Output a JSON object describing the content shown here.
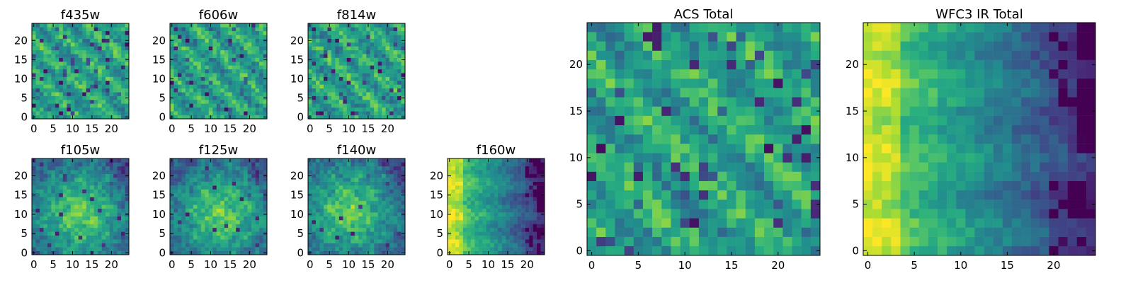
{
  "chart_data": [
    {
      "type": "heatmap",
      "title": "f435w",
      "xlabel": "",
      "ylabel": "",
      "xticks": [
        0,
        5,
        10,
        15,
        20
      ],
      "yticks": [
        0,
        5,
        10,
        15,
        20
      ],
      "xlim": [
        -0.5,
        24.5
      ],
      "ylim": [
        -0.5,
        24.5
      ],
      "grid": false,
      "colormap": "viridis",
      "rows": 25,
      "cols": 25,
      "pattern": "noise",
      "seed": 11
    },
    {
      "type": "heatmap",
      "title": "f606w",
      "xlabel": "",
      "ylabel": "",
      "xticks": [
        0,
        5,
        10,
        15,
        20
      ],
      "yticks": [
        0,
        5,
        10,
        15,
        20
      ],
      "xlim": [
        -0.5,
        24.5
      ],
      "ylim": [
        -0.5,
        24.5
      ],
      "grid": false,
      "colormap": "viridis",
      "rows": 25,
      "cols": 25,
      "pattern": "noise",
      "seed": 23
    },
    {
      "type": "heatmap",
      "title": "f814w",
      "xlabel": "",
      "ylabel": "",
      "xticks": [
        0,
        5,
        10,
        15,
        20
      ],
      "yticks": [
        0,
        5,
        10,
        15,
        20
      ],
      "xlim": [
        -0.5,
        24.5
      ],
      "ylim": [
        -0.5,
        24.5
      ],
      "grid": false,
      "colormap": "viridis",
      "rows": 25,
      "cols": 25,
      "pattern": "noise",
      "seed": 37
    },
    {
      "type": "heatmap",
      "title": "f105w",
      "xlabel": "",
      "ylabel": "",
      "xticks": [
        0,
        5,
        10,
        15,
        20
      ],
      "yticks": [
        0,
        5,
        10,
        15,
        20
      ],
      "xlim": [
        -0.5,
        24.5
      ],
      "ylim": [
        -0.5,
        24.5
      ],
      "grid": false,
      "colormap": "viridis",
      "rows": 25,
      "cols": 25,
      "pattern": "smooth",
      "seed": 41
    },
    {
      "type": "heatmap",
      "title": "f125w",
      "xlabel": "",
      "ylabel": "",
      "xticks": [
        0,
        5,
        10,
        15,
        20
      ],
      "yticks": [
        0,
        5,
        10,
        15,
        20
      ],
      "xlim": [
        -0.5,
        24.5
      ],
      "ylim": [
        -0.5,
        24.5
      ],
      "grid": false,
      "colormap": "viridis",
      "rows": 25,
      "cols": 25,
      "pattern": "smooth",
      "seed": 53
    },
    {
      "type": "heatmap",
      "title": "f140w",
      "xlabel": "",
      "ylabel": "",
      "xticks": [
        0,
        5,
        10,
        15,
        20
      ],
      "yticks": [
        0,
        5,
        10,
        15,
        20
      ],
      "xlim": [
        -0.5,
        24.5
      ],
      "ylim": [
        -0.5,
        24.5
      ],
      "grid": false,
      "colormap": "viridis",
      "rows": 25,
      "cols": 25,
      "pattern": "smooth",
      "seed": 67
    },
    {
      "type": "heatmap",
      "title": "f160w",
      "xlabel": "",
      "ylabel": "",
      "xticks": [
        0,
        5,
        10,
        15,
        20
      ],
      "yticks": [
        0,
        5,
        10,
        15,
        20
      ],
      "xlim": [
        -0.5,
        24.5
      ],
      "ylim": [
        -0.5,
        24.5
      ],
      "grid": false,
      "colormap": "viridis",
      "rows": 25,
      "cols": 25,
      "pattern": "gradient",
      "seed": 79
    },
    {
      "type": "heatmap",
      "title": "ACS Total",
      "xlabel": "",
      "ylabel": "",
      "xticks": [
        0,
        5,
        10,
        15,
        20
      ],
      "yticks": [
        0,
        5,
        10,
        15,
        20
      ],
      "xlim": [
        -0.5,
        24.5
      ],
      "ylim": [
        -0.5,
        24.5
      ],
      "grid": false,
      "colormap": "viridis",
      "rows": 25,
      "cols": 25,
      "pattern": "noise",
      "seed": 97
    },
    {
      "type": "heatmap",
      "title": "WFC3 IR Total",
      "xlabel": "",
      "ylabel": "",
      "xticks": [
        0,
        5,
        10,
        15,
        20
      ],
      "yticks": [
        0,
        5,
        10,
        15,
        20
      ],
      "xlim": [
        -0.5,
        24.5
      ],
      "ylim": [
        -0.5,
        24.5
      ],
      "grid": false,
      "colormap": "viridis",
      "rows": 25,
      "cols": 25,
      "pattern": "gradient",
      "seed": 113
    }
  ]
}
